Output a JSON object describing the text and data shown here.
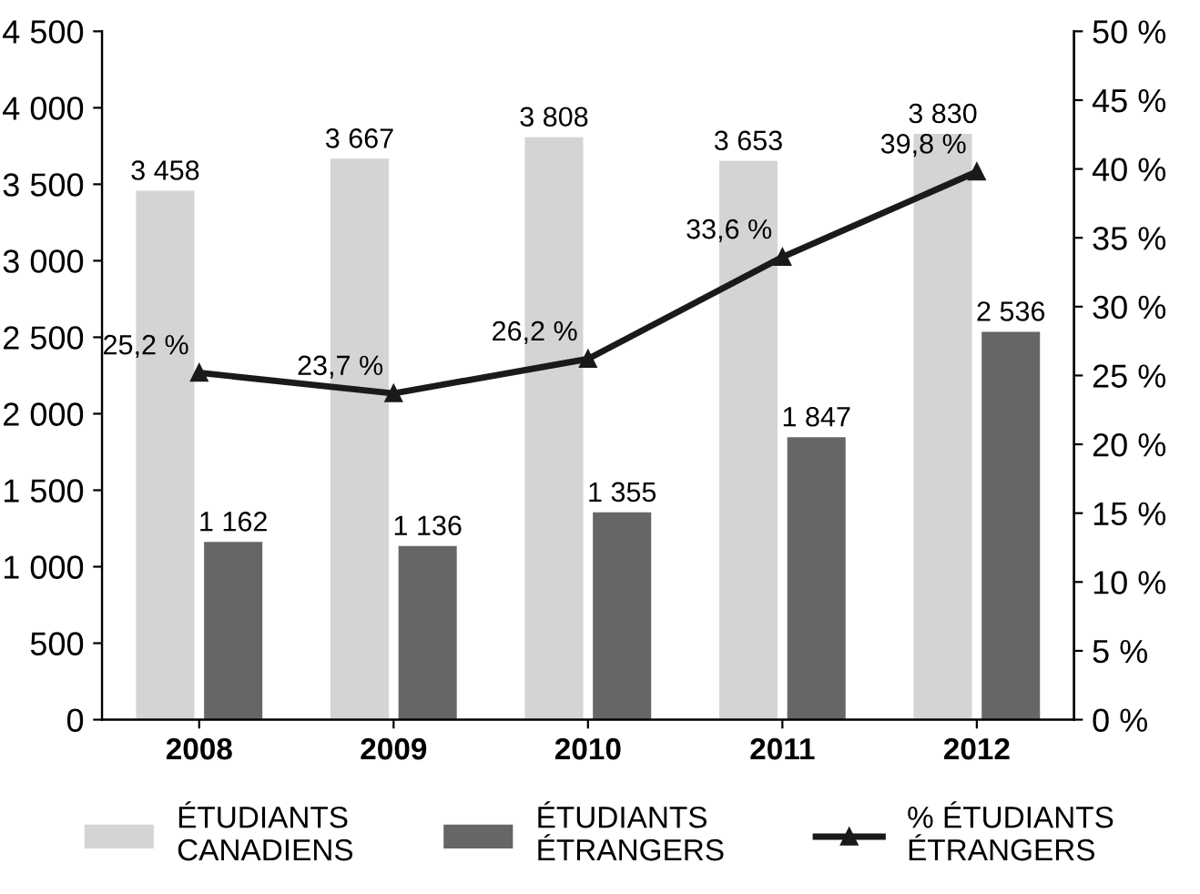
{
  "chart_data": {
    "type": "bar",
    "categories": [
      "2008",
      "2009",
      "2010",
      "2011",
      "2012"
    ],
    "series": [
      {
        "name": "ÉTUDIANTS\nCANADIENS",
        "color": "#d4d4d4",
        "values": [
          3458,
          3667,
          3808,
          3653,
          3830
        ],
        "value_labels": [
          "3 458",
          "3 667",
          "3 808",
          "3 653",
          "3 830"
        ]
      },
      {
        "name": "ÉTUDIANTS\nÉTRANGERS",
        "color": "#666666",
        "values": [
          1162,
          1136,
          1355,
          1847,
          2536
        ],
        "value_labels": [
          "1 162",
          "1 136",
          "1 355",
          "1 847",
          "2 536"
        ]
      },
      {
        "name": "% ÉTUDIANTS\nÉTRANGERS",
        "type": "line",
        "axis": "y2",
        "color": "#1a1a1a",
        "marker": "triangle",
        "line_style": "solid",
        "values": [
          25.2,
          23.7,
          26.2,
          33.6,
          39.8
        ],
        "value_labels": [
          "25,2 %",
          "23,7 %",
          "26,2 %",
          "33,6 %",
          "39,8 %"
        ]
      }
    ],
    "ylim": [
      0,
      4500
    ],
    "yticks": [
      0,
      500,
      {
        "value": 1000,
        "label": "1 000"
      },
      {
        "value": 1500,
        "label": "1 500"
      },
      {
        "value": 2000,
        "label": "2 000"
      },
      {
        "value": 2500,
        "label": "2 500"
      },
      {
        "value": 3000,
        "label": "3 000"
      },
      {
        "value": 3500,
        "label": "3 500"
      },
      {
        "value": 4000,
        "label": "4 000"
      },
      {
        "value": 4500,
        "label": "4 500"
      }
    ],
    "y2lim": [
      0,
      50
    ],
    "y2ticks": [
      {
        "value": 0,
        "label": "0 %"
      },
      {
        "value": 5,
        "label": "5 %"
      },
      {
        "value": 10,
        "label": "10 %"
      },
      {
        "value": 15,
        "label": "15 %"
      },
      {
        "value": 20,
        "label": "20 %"
      },
      {
        "value": 25,
        "label": "25 %"
      },
      {
        "value": 30,
        "label": "30 %"
      },
      {
        "value": 35,
        "label": "35 %"
      },
      {
        "value": 40,
        "label": "40 %"
      },
      {
        "value": 45,
        "label": "45 %"
      },
      {
        "value": 50,
        "label": "50 %"
      }
    ],
    "grid": false,
    "legend": "bottom"
  }
}
